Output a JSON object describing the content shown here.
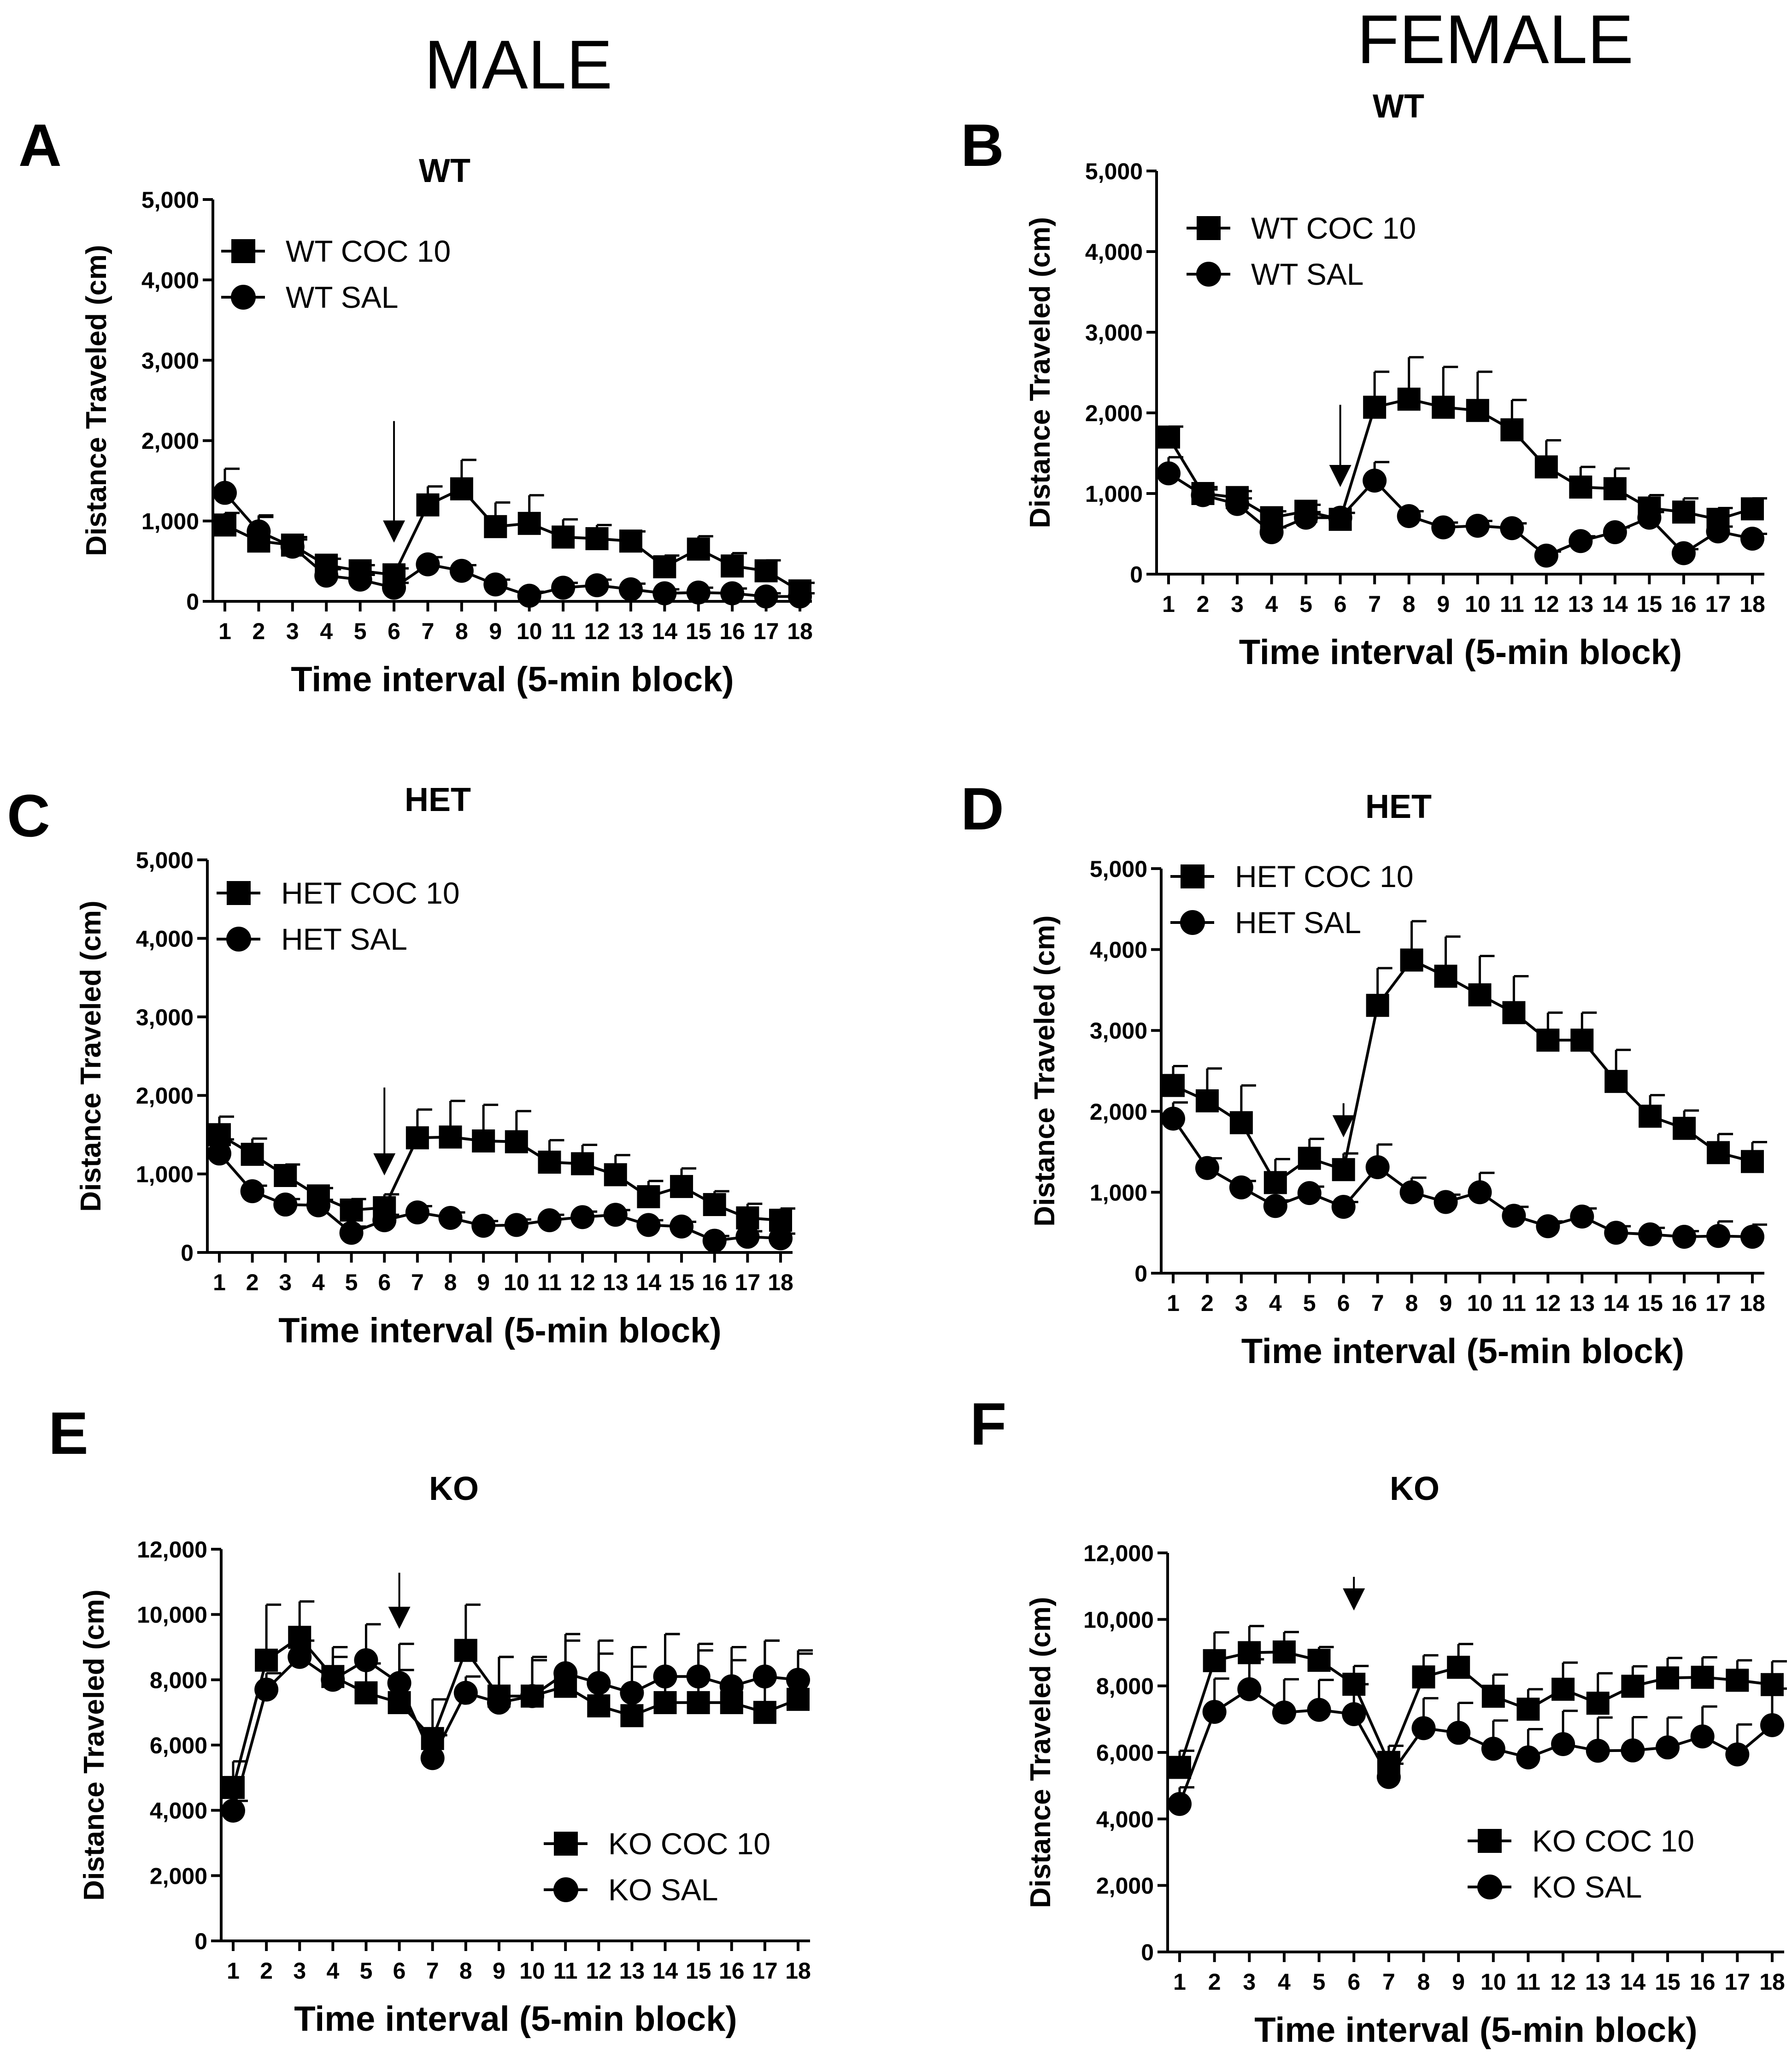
{
  "headers": {
    "male": "MALE",
    "female": "FEMALE"
  },
  "chart_data": [
    {
      "id": "A",
      "letter": "A",
      "type": "line",
      "title": "WT",
      "xlabel": "Time interval (5-min block)",
      "ylabel": "Distance Traveled (cm)",
      "x": [
        1,
        2,
        3,
        4,
        5,
        6,
        7,
        8,
        9,
        10,
        11,
        12,
        13,
        14,
        15,
        16,
        17,
        18
      ],
      "ylim": [
        0,
        5000
      ],
      "yticks": [
        0,
        1000,
        2000,
        3000,
        4000,
        5000
      ],
      "ytick_labels": [
        "0",
        "1,000",
        "2,000",
        "3,000",
        "4,000",
        "5,000"
      ],
      "arrow_at": 6,
      "legend_position": "top-left",
      "series": [
        {
          "name": "WT COC 10",
          "marker": "square",
          "values": [
            950,
            750,
            700,
            450,
            380,
            330,
            1200,
            1400,
            930,
            970,
            800,
            780,
            750,
            430,
            650,
            440,
            380,
            130
          ],
          "errors": [
            150,
            300,
            100,
            80,
            70,
            80,
            230,
            360,
            300,
            350,
            220,
            170,
            120,
            140,
            160,
            160,
            130,
            100
          ]
        },
        {
          "name": "WT SAL",
          "marker": "circle",
          "values": [
            1350,
            870,
            680,
            320,
            270,
            170,
            460,
            380,
            210,
            70,
            170,
            200,
            150,
            100,
            110,
            100,
            60,
            60
          ],
          "errors": [
            300,
            200,
            90,
            80,
            60,
            60,
            90,
            70,
            60,
            50,
            60,
            70,
            70,
            50,
            60,
            60,
            40,
            40
          ]
        }
      ]
    },
    {
      "id": "B",
      "letter": "B",
      "type": "line",
      "title": "WT",
      "xlabel": "Time interval (5-min block)",
      "ylabel": "Distance Traveled (cm)",
      "x": [
        1,
        2,
        3,
        4,
        5,
        6,
        7,
        8,
        9,
        10,
        11,
        12,
        13,
        14,
        15,
        16,
        17,
        18
      ],
      "ylim": [
        0,
        5000
      ],
      "yticks": [
        0,
        1000,
        2000,
        3000,
        4000,
        5000
      ],
      "ytick_labels": [
        "0",
        "1,000",
        "2,000",
        "3,000",
        "4,000",
        "5,000"
      ],
      "arrow_at": 6,
      "legend_position": "top-left",
      "series": [
        {
          "name": "WT COC 10",
          "marker": "square",
          "values": [
            1700,
            1000,
            950,
            700,
            780,
            680,
            2070,
            2170,
            2070,
            2030,
            1790,
            1330,
            1080,
            1060,
            820,
            770,
            680,
            810
          ],
          "errors": [
            130,
            80,
            80,
            80,
            80,
            80,
            440,
            520,
            500,
            480,
            370,
            330,
            250,
            250,
            160,
            170,
            140,
            130
          ]
        },
        {
          "name": "WT SAL",
          "marker": "circle",
          "values": [
            1250,
            980,
            870,
            520,
            700,
            700,
            1160,
            720,
            580,
            600,
            570,
            230,
            410,
            520,
            700,
            260,
            530,
            440
          ],
          "errors": [
            200,
            70,
            70,
            60,
            70,
            60,
            230,
            60,
            60,
            60,
            60,
            50,
            60,
            60,
            70,
            50,
            60,
            60
          ]
        }
      ]
    },
    {
      "id": "C",
      "letter": "C",
      "type": "line",
      "title": "HET",
      "xlabel": "Time interval (5-min block)",
      "ylabel": "Distance Traveled (cm)",
      "x": [
        1,
        2,
        3,
        4,
        5,
        6,
        7,
        8,
        9,
        10,
        11,
        12,
        13,
        14,
        15,
        16,
        17,
        18
      ],
      "ylim": [
        0,
        5000
      ],
      "yticks": [
        0,
        1000,
        2000,
        3000,
        4000,
        5000
      ],
      "ytick_labels": [
        "0",
        "1,000",
        "2,000",
        "3,000",
        "4,000",
        "5,000"
      ],
      "arrow_at": 6,
      "legend_position": "top-left",
      "series": [
        {
          "name": "HET COC 10",
          "marker": "square",
          "values": [
            1500,
            1250,
            980,
            720,
            540,
            570,
            1460,
            1470,
            1420,
            1410,
            1150,
            1130,
            990,
            710,
            840,
            610,
            440,
            410
          ],
          "errors": [
            230,
            200,
            140,
            100,
            140,
            170,
            360,
            460,
            460,
            390,
            280,
            240,
            250,
            200,
            230,
            170,
            180,
            150
          ]
        },
        {
          "name": "HET SAL",
          "marker": "circle",
          "values": [
            1260,
            780,
            610,
            600,
            250,
            410,
            510,
            440,
            340,
            350,
            410,
            450,
            480,
            350,
            330,
            150,
            200,
            180
          ],
          "errors": [
            180,
            70,
            70,
            70,
            80,
            70,
            80,
            70,
            60,
            70,
            70,
            70,
            60,
            60,
            60,
            60,
            70,
            60
          ]
        }
      ]
    },
    {
      "id": "D",
      "letter": "D",
      "type": "line",
      "title": "HET",
      "xlabel": "Time interval (5-min block)",
      "ylabel": "Distance Traveled (cm)",
      "x": [
        1,
        2,
        3,
        4,
        5,
        6,
        7,
        8,
        9,
        10,
        11,
        12,
        13,
        14,
        15,
        16,
        17,
        18
      ],
      "ylim": [
        0,
        5000
      ],
      "yticks": [
        0,
        1000,
        2000,
        3000,
        4000,
        5000
      ],
      "ytick_labels": [
        "0",
        "1,000",
        "2,000",
        "3,000",
        "4,000",
        "5,000"
      ],
      "arrow_at": 6,
      "legend_position": "top-left",
      "series": [
        {
          "name": "HET COC 10",
          "marker": "square",
          "values": [
            2320,
            2130,
            1860,
            1120,
            1420,
            1280,
            3310,
            3870,
            3670,
            3440,
            3220,
            2880,
            2880,
            2370,
            1940,
            1790,
            1490,
            1380
          ],
          "errors": [
            240,
            400,
            460,
            290,
            240,
            200,
            460,
            480,
            490,
            480,
            450,
            340,
            340,
            390,
            260,
            220,
            230,
            240
          ]
        },
        {
          "name": "HET SAL",
          "marker": "circle",
          "values": [
            1910,
            1300,
            1060,
            830,
            990,
            820,
            1310,
            1000,
            880,
            1000,
            710,
            580,
            700,
            500,
            480,
            450,
            460,
            450
          ],
          "errors": [
            200,
            120,
            80,
            70,
            80,
            60,
            280,
            180,
            90,
            240,
            110,
            60,
            100,
            80,
            80,
            70,
            180,
            150
          ]
        }
      ]
    },
    {
      "id": "E",
      "letter": "E",
      "type": "line",
      "title": "KO",
      "xlabel": "Time interval (5-min block)",
      "ylabel": "Distance Traveled (cm)",
      "x": [
        1,
        2,
        3,
        4,
        5,
        6,
        7,
        8,
        9,
        10,
        11,
        12,
        13,
        14,
        15,
        16,
        17,
        18
      ],
      "ylim": [
        0,
        12000
      ],
      "yticks": [
        0,
        2000,
        4000,
        6000,
        8000,
        10000,
        12000
      ],
      "ytick_labels": [
        "0",
        "2,000",
        "4,000",
        "6,000",
        "8,000",
        "10,000",
        "12,000"
      ],
      "arrow_at": 6,
      "legend_position": "bottom-right",
      "series": [
        {
          "name": "KO COC 10",
          "marker": "square",
          "values": [
            4700,
            8600,
            9300,
            8100,
            7600,
            7300,
            6200,
            8900,
            7500,
            7500,
            7800,
            7200,
            6900,
            7300,
            7300,
            7300,
            7000,
            7400
          ],
          "errors": [
            800,
            1700,
            1100,
            600,
            900,
            1000,
            1200,
            1400,
            1200,
            1200,
            1600,
            2000,
            2100,
            2100,
            1800,
            1700,
            2200,
            1500
          ]
        },
        {
          "name": "KO SAL",
          "marker": "circle",
          "values": [
            3990,
            7700,
            8700,
            8000,
            8600,
            7900,
            5600,
            7600,
            7300,
            7500,
            8200,
            7900,
            7600,
            8100,
            8100,
            7800,
            8100,
            8000
          ],
          "errors": [
            300,
            500,
            500,
            1000,
            1100,
            1200,
            700,
            500,
            1400,
            1100,
            1000,
            900,
            800,
            1300,
            800,
            800,
            1100,
            800
          ]
        }
      ]
    },
    {
      "id": "F",
      "letter": "F",
      "type": "line",
      "title": "KO",
      "xlabel": "Time interval (5-min block)",
      "ylabel": "Distance Traveled (cm)",
      "x": [
        1,
        2,
        3,
        4,
        5,
        6,
        7,
        8,
        9,
        10,
        11,
        12,
        13,
        14,
        15,
        16,
        17,
        18
      ],
      "ylim": [
        0,
        12000
      ],
      "yticks": [
        0,
        2000,
        4000,
        6000,
        8000,
        10000,
        12000
      ],
      "ytick_labels": [
        "0",
        "2,000",
        "4,000",
        "6,000",
        "8,000",
        "10,000",
        "12,000"
      ],
      "arrow_at": 6,
      "legend_position": "bottom-right",
      "series": [
        {
          "name": "KO COC 10",
          "marker": "square",
          "values": [
            5550,
            8760,
            9000,
            9020,
            8770,
            8050,
            5700,
            8270,
            8560,
            7690,
            7300,
            7900,
            7480,
            7990,
            8240,
            8260,
            8170,
            8040
          ],
          "errors": [
            500,
            850,
            800,
            600,
            400,
            550,
            500,
            650,
            700,
            650,
            600,
            800,
            900,
            600,
            600,
            600,
            600,
            700
          ]
        },
        {
          "name": "KO SAL",
          "marker": "circle",
          "values": [
            4450,
            7220,
            7900,
            7200,
            7280,
            7150,
            5260,
            6730,
            6590,
            6110,
            5850,
            6250,
            6050,
            6060,
            6150,
            6480,
            5940,
            6820
          ],
          "errors": [
            500,
            1000,
            900,
            1000,
            900,
            900,
            400,
            900,
            900,
            850,
            850,
            1000,
            1000,
            1000,
            900,
            900,
            900,
            1100
          ]
        }
      ]
    }
  ]
}
